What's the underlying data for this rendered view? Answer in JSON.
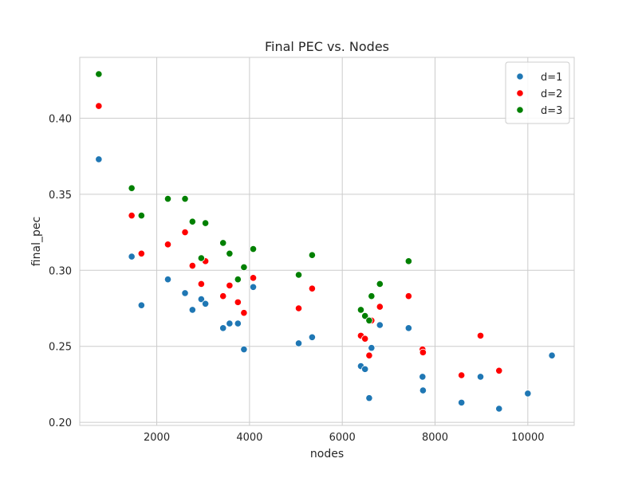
{
  "chart_data": {
    "type": "scatter",
    "title": "Final PEC vs. Nodes",
    "xlabel": "nodes",
    "ylabel": "final_pec",
    "xlim": [
      340,
      11000
    ],
    "ylim": [
      0.198,
      0.44
    ],
    "xticks": [
      2000,
      4000,
      6000,
      8000,
      10000
    ],
    "yticks": [
      0.2,
      0.25,
      0.3,
      0.35,
      0.4
    ],
    "ytick_labels": [
      "0.20",
      "0.25",
      "0.30",
      "0.35",
      "0.40"
    ],
    "grid": true,
    "legend_position": "top-right",
    "series": [
      {
        "name": "d=1",
        "color": "#1f77b4",
        "points": [
          [
            750,
            0.373
          ],
          [
            1460,
            0.309
          ],
          [
            1670,
            0.277
          ],
          [
            2240,
            0.294
          ],
          [
            2610,
            0.285
          ],
          [
            2770,
            0.274
          ],
          [
            2960,
            0.281
          ],
          [
            3050,
            0.278
          ],
          [
            3430,
            0.262
          ],
          [
            3570,
            0.265
          ],
          [
            3750,
            0.265
          ],
          [
            3880,
            0.248
          ],
          [
            4080,
            0.289
          ],
          [
            5060,
            0.252
          ],
          [
            5350,
            0.256
          ],
          [
            6400,
            0.237
          ],
          [
            6490,
            0.235
          ],
          [
            6580,
            0.216
          ],
          [
            6630,
            0.249
          ],
          [
            6810,
            0.264
          ],
          [
            7430,
            0.262
          ],
          [
            7730,
            0.23
          ],
          [
            7740,
            0.221
          ],
          [
            8570,
            0.213
          ],
          [
            8980,
            0.23
          ],
          [
            9380,
            0.209
          ],
          [
            10000,
            0.219
          ],
          [
            10520,
            0.244
          ]
        ]
      },
      {
        "name": "d=2",
        "color": "#ff0000",
        "points": [
          [
            750,
            0.408
          ],
          [
            1460,
            0.336
          ],
          [
            1670,
            0.311
          ],
          [
            2240,
            0.317
          ],
          [
            2610,
            0.325
          ],
          [
            2770,
            0.303
          ],
          [
            2960,
            0.291
          ],
          [
            3050,
            0.306
          ],
          [
            3430,
            0.283
          ],
          [
            3570,
            0.29
          ],
          [
            3750,
            0.279
          ],
          [
            3880,
            0.272
          ],
          [
            4080,
            0.295
          ],
          [
            5060,
            0.275
          ],
          [
            5350,
            0.288
          ],
          [
            6400,
            0.257
          ],
          [
            6490,
            0.255
          ],
          [
            6580,
            0.244
          ],
          [
            6630,
            0.267
          ],
          [
            6810,
            0.276
          ],
          [
            7430,
            0.283
          ],
          [
            7730,
            0.248
          ],
          [
            7740,
            0.246
          ],
          [
            8570,
            0.231
          ],
          [
            8980,
            0.257
          ],
          [
            9380,
            0.234
          ]
        ]
      },
      {
        "name": "d=3",
        "color": "#008000",
        "points": [
          [
            750,
            0.429
          ],
          [
            1460,
            0.354
          ],
          [
            1670,
            0.336
          ],
          [
            2240,
            0.347
          ],
          [
            2610,
            0.347
          ],
          [
            2770,
            0.332
          ],
          [
            2960,
            0.308
          ],
          [
            3050,
            0.331
          ],
          [
            3430,
            0.318
          ],
          [
            3570,
            0.311
          ],
          [
            3750,
            0.294
          ],
          [
            3880,
            0.302
          ],
          [
            4080,
            0.314
          ],
          [
            5060,
            0.297
          ],
          [
            5350,
            0.31
          ],
          [
            6400,
            0.274
          ],
          [
            6490,
            0.27
          ],
          [
            6580,
            0.267
          ],
          [
            6630,
            0.283
          ],
          [
            6810,
            0.291
          ],
          [
            7430,
            0.306
          ]
        ]
      }
    ]
  }
}
